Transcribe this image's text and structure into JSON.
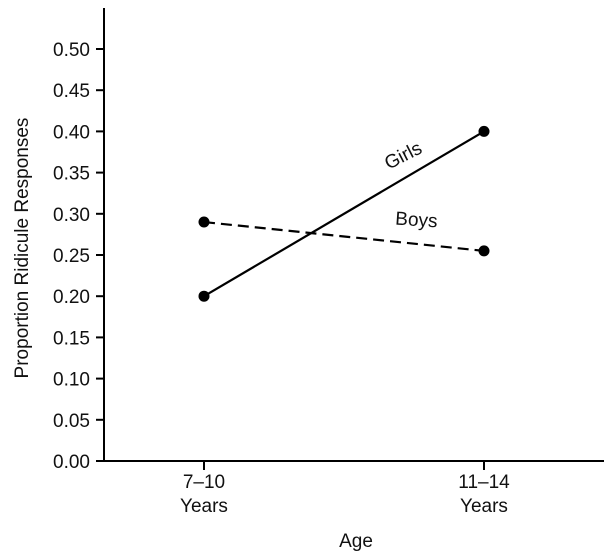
{
  "chart_data": {
    "type": "line",
    "xlabel": "Age",
    "ylabel": "Proportion Ridicule Responses",
    "categories": [
      [
        "7–10",
        "Years"
      ],
      [
        "11–14",
        "Years"
      ]
    ],
    "ylim": [
      0,
      0.5
    ],
    "yticks": [
      "0.00",
      "0.05",
      "0.10",
      "0.15",
      "0.20",
      "0.25",
      "0.30",
      "0.35",
      "0.40",
      "0.45",
      "0.50"
    ],
    "grid": false,
    "legend": "inline labels on lines",
    "series": [
      {
        "name": "Girls",
        "values": [
          0.2,
          0.4
        ],
        "line_style": "solid",
        "color": "#000000"
      },
      {
        "name": "Boys",
        "values": [
          0.29,
          0.255
        ],
        "line_style": "dashed",
        "color": "#000000"
      }
    ]
  }
}
